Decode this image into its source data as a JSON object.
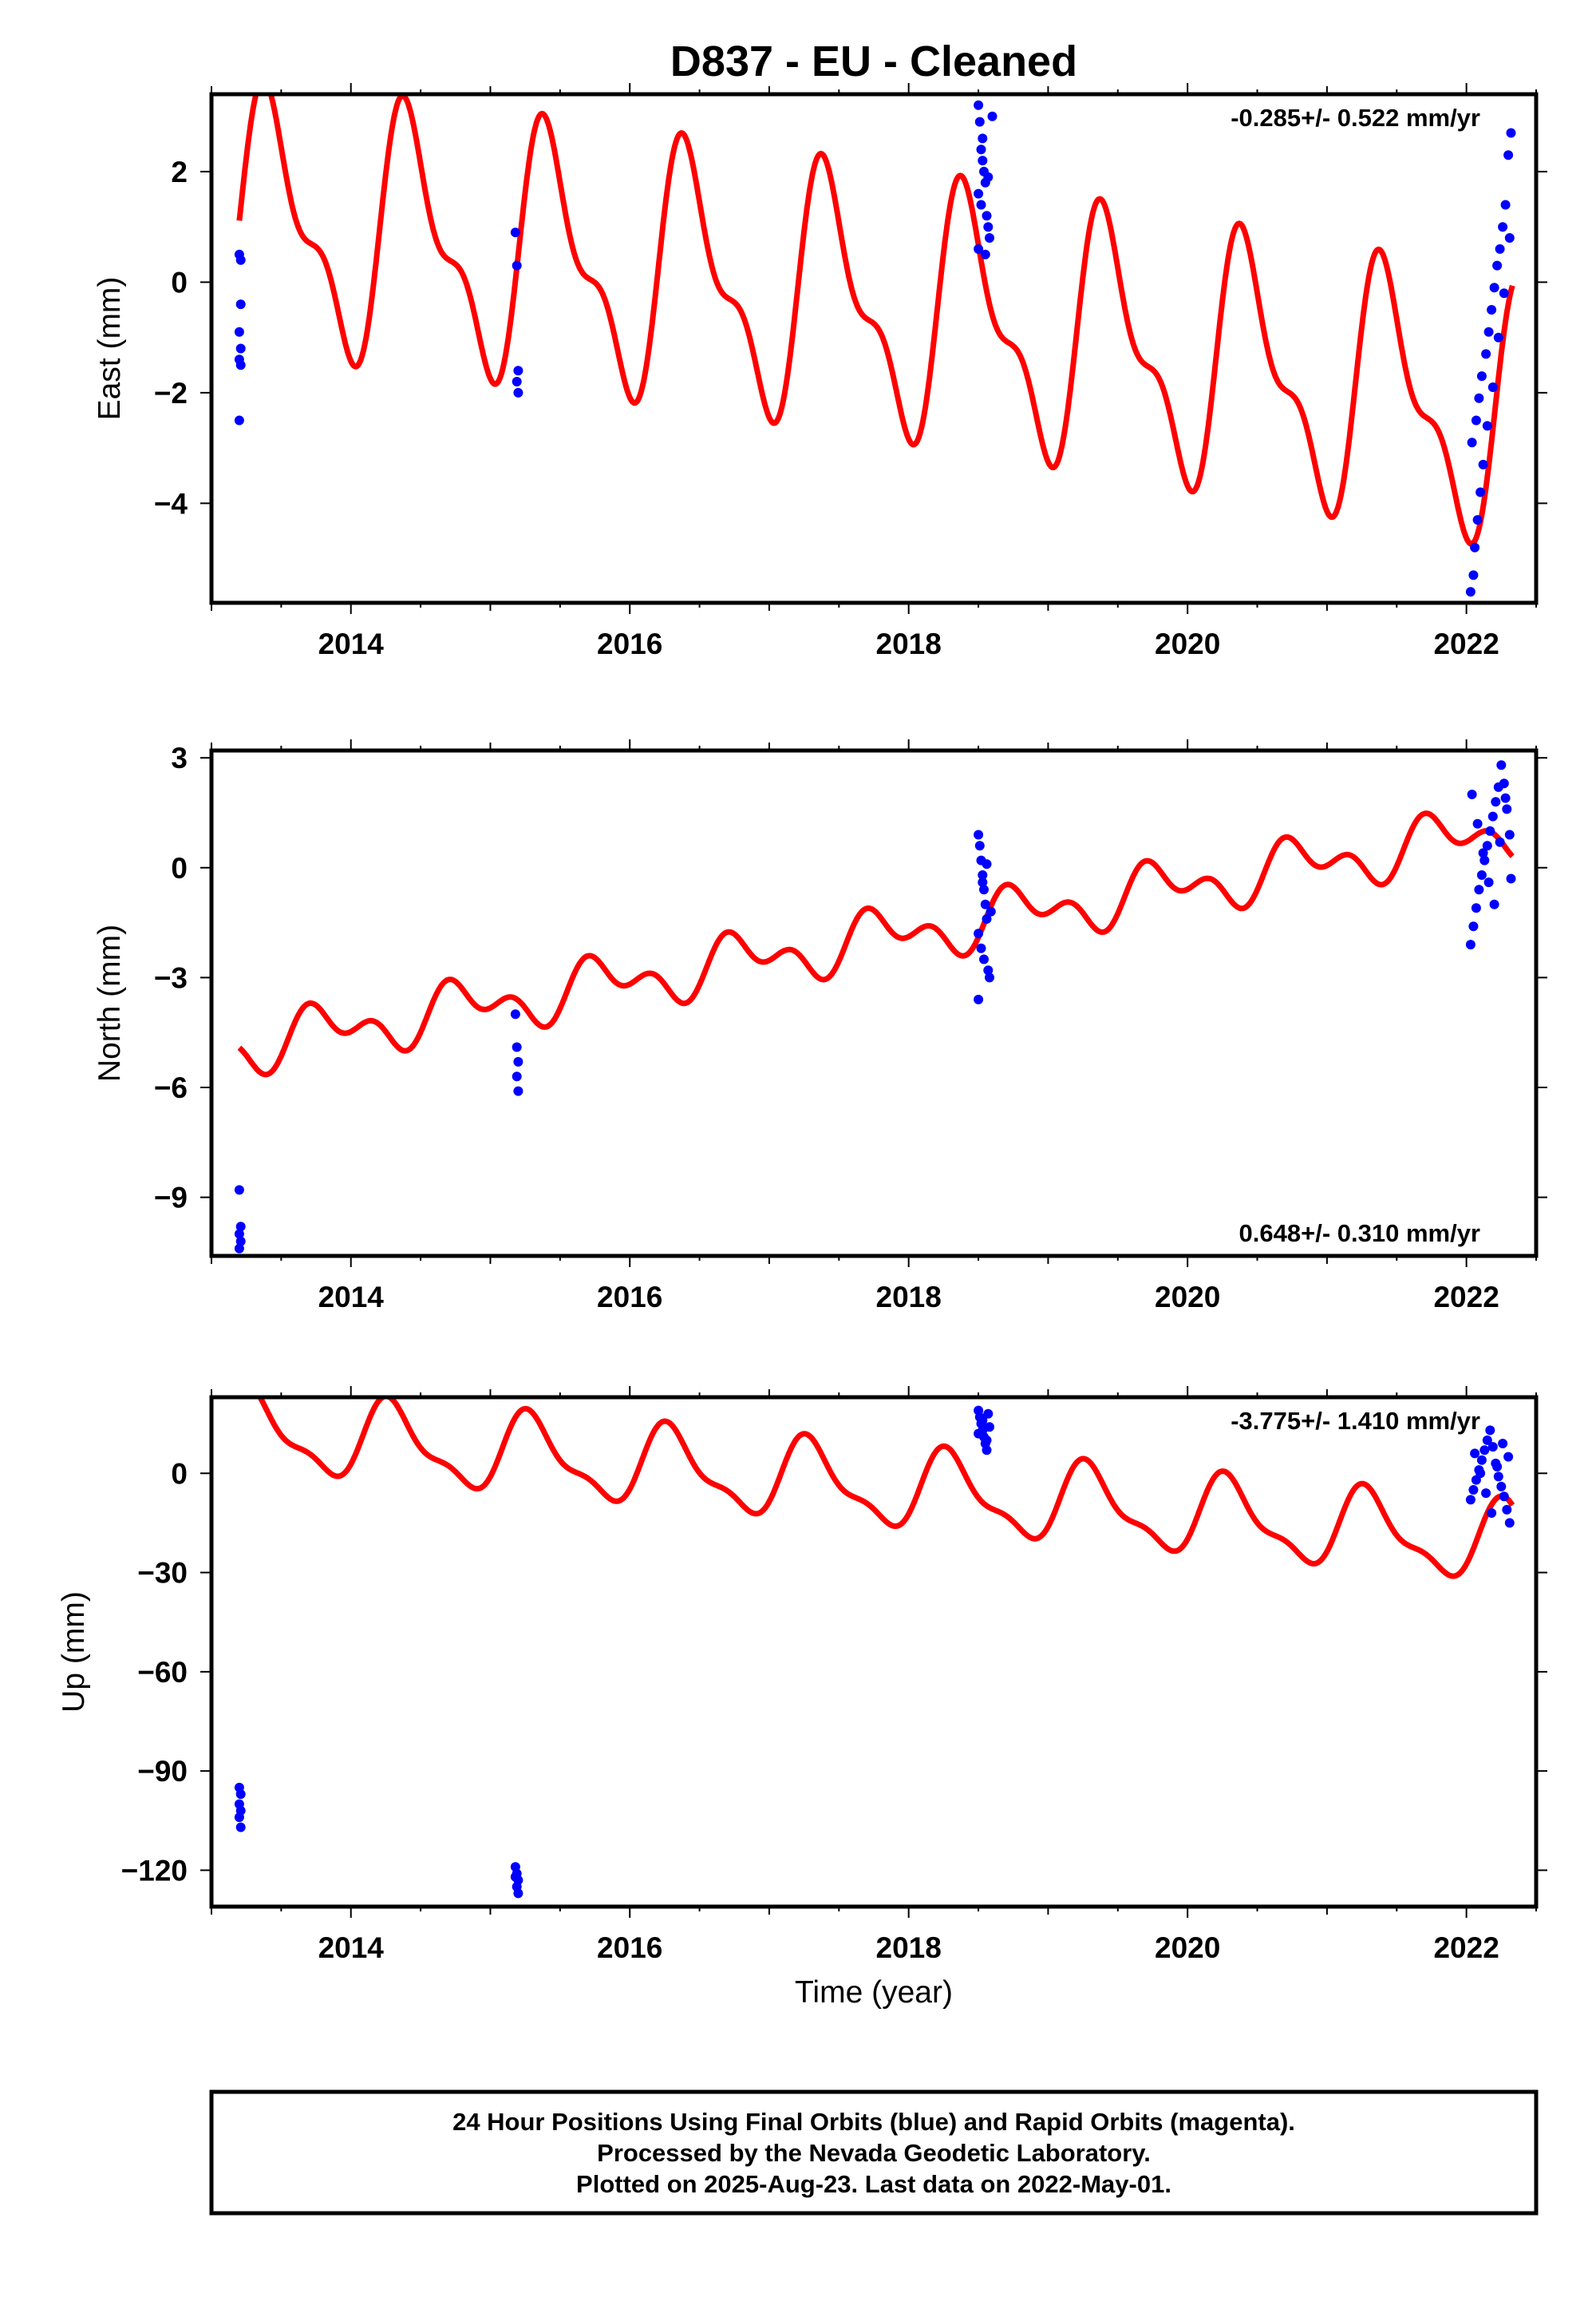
{
  "title": "D837  - EU - Cleaned",
  "footer": {
    "line1": "24 Hour Positions Using Final Orbits (blue) and Rapid Orbits (magenta).",
    "line2": "Processed by the Nevada Geodetic Laboratory.",
    "line3": "Plotted on 2025-Aug-23. Last data on 2022-May-01."
  },
  "colors": {
    "data": "#0000ff",
    "model": "#ff0000",
    "frame": "#000000"
  },
  "chart_data": [
    {
      "type": "scatter",
      "component": "east",
      "ylabel": "East (mm)",
      "xlabel": "",
      "rate_text": "-0.285+/- 0.522 mm/yr",
      "rate_position": "top-right",
      "xlim": [
        2013.0,
        2022.5
      ],
      "ylim": [
        -5.8,
        3.4
      ],
      "xticks": [
        2014,
        2016,
        2018,
        2020,
        2022
      ],
      "yticks": [
        -4,
        -2,
        0,
        2
      ],
      "ytick_labels": [
        "−4",
        "−2",
        "0",
        "2"
      ],
      "model": {
        "offset": 1.1,
        "rate": -0.285,
        "t0": 2013.2,
        "amp_annual": 2.0,
        "phase_annual": 0.19,
        "amp_semi": 0.9,
        "phase_semi": 0.21,
        "accel": -0.012
      },
      "x": [
        2013.2,
        2013.21,
        2013.21,
        2013.2,
        2013.21,
        2013.2,
        2013.21,
        2013.2,
        2015.18,
        2015.19,
        2015.2,
        2015.19,
        2015.2,
        2018.5,
        2018.51,
        2018.52,
        2018.53,
        2018.54,
        2018.55,
        2018.5,
        2018.52,
        2018.56,
        2018.57,
        2018.58,
        2018.5,
        2018.53,
        2018.55,
        2018.57,
        2018.6,
        2022.03,
        2022.05,
        2022.06,
        2022.08,
        2022.1,
        2022.12,
        2022.04,
        2022.07,
        2022.09,
        2022.11,
        2022.14,
        2022.16,
        2022.18,
        2022.2,
        2022.22,
        2022.24,
        2022.26,
        2022.28,
        2022.3,
        2022.32,
        2022.15,
        2022.19,
        2022.23,
        2022.27,
        2022.31
      ],
      "y": [
        0.5,
        0.4,
        -0.4,
        -0.9,
        -1.2,
        -1.4,
        -1.5,
        -2.5,
        0.9,
        0.3,
        -1.6,
        -1.8,
        -2.0,
        3.2,
        2.9,
        2.4,
        2.2,
        2.0,
        1.8,
        1.6,
        1.4,
        1.2,
        1.0,
        0.8,
        0.6,
        2.6,
        0.5,
        1.9,
        3.0,
        -5.6,
        -5.3,
        -4.8,
        -4.3,
        -3.8,
        -3.3,
        -2.9,
        -2.5,
        -2.1,
        -1.7,
        -1.3,
        -0.9,
        -0.5,
        -0.1,
        0.3,
        0.6,
        1.0,
        1.4,
        2.3,
        2.7,
        -2.6,
        -1.9,
        -1.0,
        -0.2,
        0.8
      ]
    },
    {
      "type": "scatter",
      "component": "north",
      "ylabel": "North (mm)",
      "xlabel": "",
      "rate_text": "0.648+/- 0.310 mm/yr",
      "rate_position": "bottom-right",
      "xlim": [
        2013.0,
        2022.5
      ],
      "ylim": [
        -10.6,
        3.2
      ],
      "xticks": [
        2014,
        2016,
        2018,
        2020,
        2022
      ],
      "yticks": [
        -9,
        -6,
        -3,
        0,
        3
      ],
      "ytick_labels": [
        "−9",
        "−6",
        "−3",
        "0",
        "3"
      ],
      "model": {
        "offset": -4.9,
        "rate": 0.648,
        "t0": 2013.2,
        "amp_annual": 0.55,
        "phase_annual": 0.55,
        "amp_semi": 0.45,
        "phase_semi": 0.05,
        "accel": 0.0
      },
      "x": [
        2013.2,
        2013.21,
        2013.2,
        2013.21,
        2013.2,
        2015.18,
        2015.19,
        2015.2,
        2015.19,
        2015.2,
        2018.5,
        2018.51,
        2018.52,
        2018.53,
        2018.54,
        2018.55,
        2018.56,
        2018.5,
        2018.52,
        2018.54,
        2018.57,
        2018.58,
        2018.5,
        2018.53,
        2018.56,
        2018.59,
        2022.03,
        2022.05,
        2022.07,
        2022.09,
        2022.11,
        2022.13,
        2022.15,
        2022.17,
        2022.19,
        2022.21,
        2022.23,
        2022.25,
        2022.27,
        2022.29,
        2022.31,
        2022.04,
        2022.08,
        2022.12,
        2022.16,
        2022.2,
        2022.24,
        2022.28,
        2022.32
      ],
      "y": [
        -8.8,
        -9.8,
        -10.0,
        -10.2,
        -10.4,
        -4.0,
        -4.9,
        -5.3,
        -5.7,
        -6.1,
        0.9,
        0.6,
        0.2,
        -0.2,
        -0.6,
        -1.0,
        -1.4,
        -1.8,
        -2.2,
        -2.5,
        -2.8,
        -3.0,
        -3.6,
        -0.4,
        0.1,
        -1.2,
        -2.1,
        -1.6,
        -1.1,
        -0.6,
        -0.2,
        0.2,
        0.6,
        1.0,
        1.4,
        1.8,
        2.2,
        2.8,
        2.3,
        1.6,
        0.9,
        2.0,
        1.2,
        0.4,
        -0.4,
        -1.0,
        0.7,
        1.9,
        -0.3
      ]
    },
    {
      "type": "scatter",
      "component": "up",
      "ylabel": "Up (mm)",
      "xlabel": "Time (year)",
      "rate_text": "-3.775+/- 1.410 mm/yr",
      "rate_position": "top-right",
      "xlim": [
        2013.0,
        2022.5
      ],
      "ylim": [
        -131,
        23
      ],
      "xticks": [
        2014,
        2016,
        2018,
        2020,
        2022
      ],
      "yticks": [
        -120,
        -90,
        -60,
        -30,
        0
      ],
      "ytick_labels": [
        "−120",
        "−90",
        "−60",
        "−30",
        "0"
      ],
      "model": {
        "offset": 13,
        "rate": -3.775,
        "t0": 2013.2,
        "amp_annual": 11.0,
        "phase_annual": 0.05,
        "amp_semi": 4.0,
        "phase_semi": 0.1,
        "accel": 0.0
      },
      "x": [
        2013.2,
        2013.21,
        2013.2,
        2013.21,
        2013.2,
        2013.21,
        2015.18,
        2015.19,
        2015.2,
        2015.19,
        2015.2,
        2015.18,
        2018.5,
        2018.51,
        2018.52,
        2018.53,
        2018.54,
        2018.55,
        2018.56,
        2018.57,
        2018.5,
        2018.53,
        2018.56,
        2018.58,
        2022.03,
        2022.05,
        2022.07,
        2022.09,
        2022.11,
        2022.13,
        2022.15,
        2022.17,
        2022.19,
        2022.21,
        2022.23,
        2022.25,
        2022.27,
        2022.29,
        2022.31,
        2022.06,
        2022.1,
        2022.14,
        2022.18,
        2022.22,
        2022.26,
        2022.3
      ],
      "y": [
        -95,
        -97,
        -100,
        -102,
        -104,
        -107,
        -119,
        -121,
        -123,
        -125,
        -127,
        -122,
        19,
        17,
        15,
        13,
        11,
        9,
        7,
        18,
        12,
        16,
        10,
        14,
        -8,
        -5,
        -2,
        1,
        4,
        7,
        10,
        13,
        8,
        3,
        -1,
        -4,
        -7,
        -11,
        -15,
        6,
        0,
        -6,
        -12,
        2,
        9,
        5
      ]
    }
  ]
}
